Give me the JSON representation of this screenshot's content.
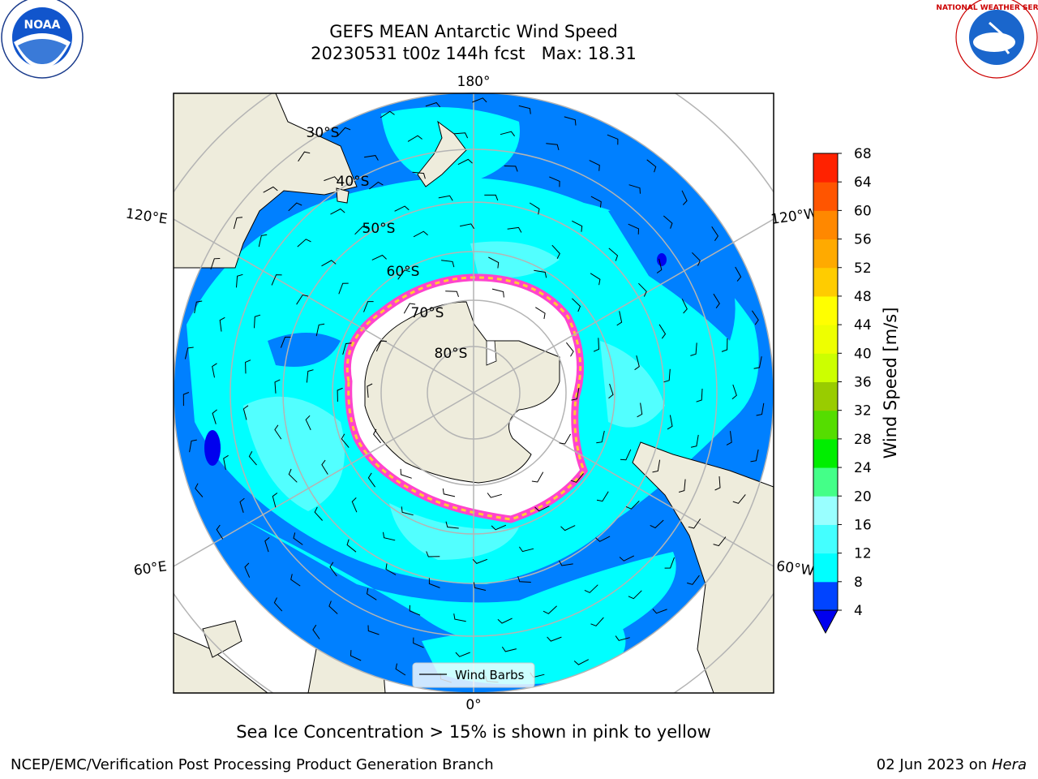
{
  "header": {
    "title_line1": "GEFS MEAN Antarctic Wind Speed",
    "title_line2": "20230531 t00z 144h fcst   Max: 18.31"
  },
  "logos": {
    "left_text": "NOAA",
    "right_text": "NATIONAL WEATHER SERVICE"
  },
  "map": {
    "projection": "south-polar-stereographic",
    "lon_labels": {
      "top": "180°",
      "left": "120°E",
      "right": "120°W",
      "lower_left": "60°E",
      "lower_right": "60°W",
      "bottom": "0°"
    },
    "lat_labels": [
      "30°S",
      "40°S",
      "50°S",
      "60°S",
      "70°S",
      "80°S"
    ],
    "legend_label": "Wind Barbs"
  },
  "colorbar": {
    "label": "Wind Speed [m/s]",
    "ticks": [
      4,
      8,
      12,
      16,
      20,
      24,
      28,
      32,
      36,
      40,
      44,
      48,
      52,
      56,
      60,
      64,
      68
    ],
    "colors": [
      "#0044ff",
      "#00ffff",
      "#44ffff",
      "#99ffff",
      "#44ff88",
      "#00ee00",
      "#55dd00",
      "#99cc00",
      "#ccff00",
      "#eeff00",
      "#ffff00",
      "#ffcc00",
      "#ffaa00",
      "#ff8800",
      "#ff5500",
      "#ff2200",
      "#ff0000"
    ],
    "under_color": "#0000ee"
  },
  "colors": {
    "ocean_low": "#0080ff",
    "ocean_mid": "#00ffff",
    "ocean_high": "#66ffff",
    "land": "#eeecdc",
    "ice": "#ffffff",
    "ice_edge": "#ff44cc",
    "grid": "#b4b4b4"
  },
  "subtitle": "Sea Ice Concentration > 15% is shown in pink to yellow",
  "footer": {
    "left": "NCEP/EMC/Verification Post Processing Product Generation Branch",
    "right_date": "02 Jun 2023 on ",
    "right_host": "Hera"
  }
}
